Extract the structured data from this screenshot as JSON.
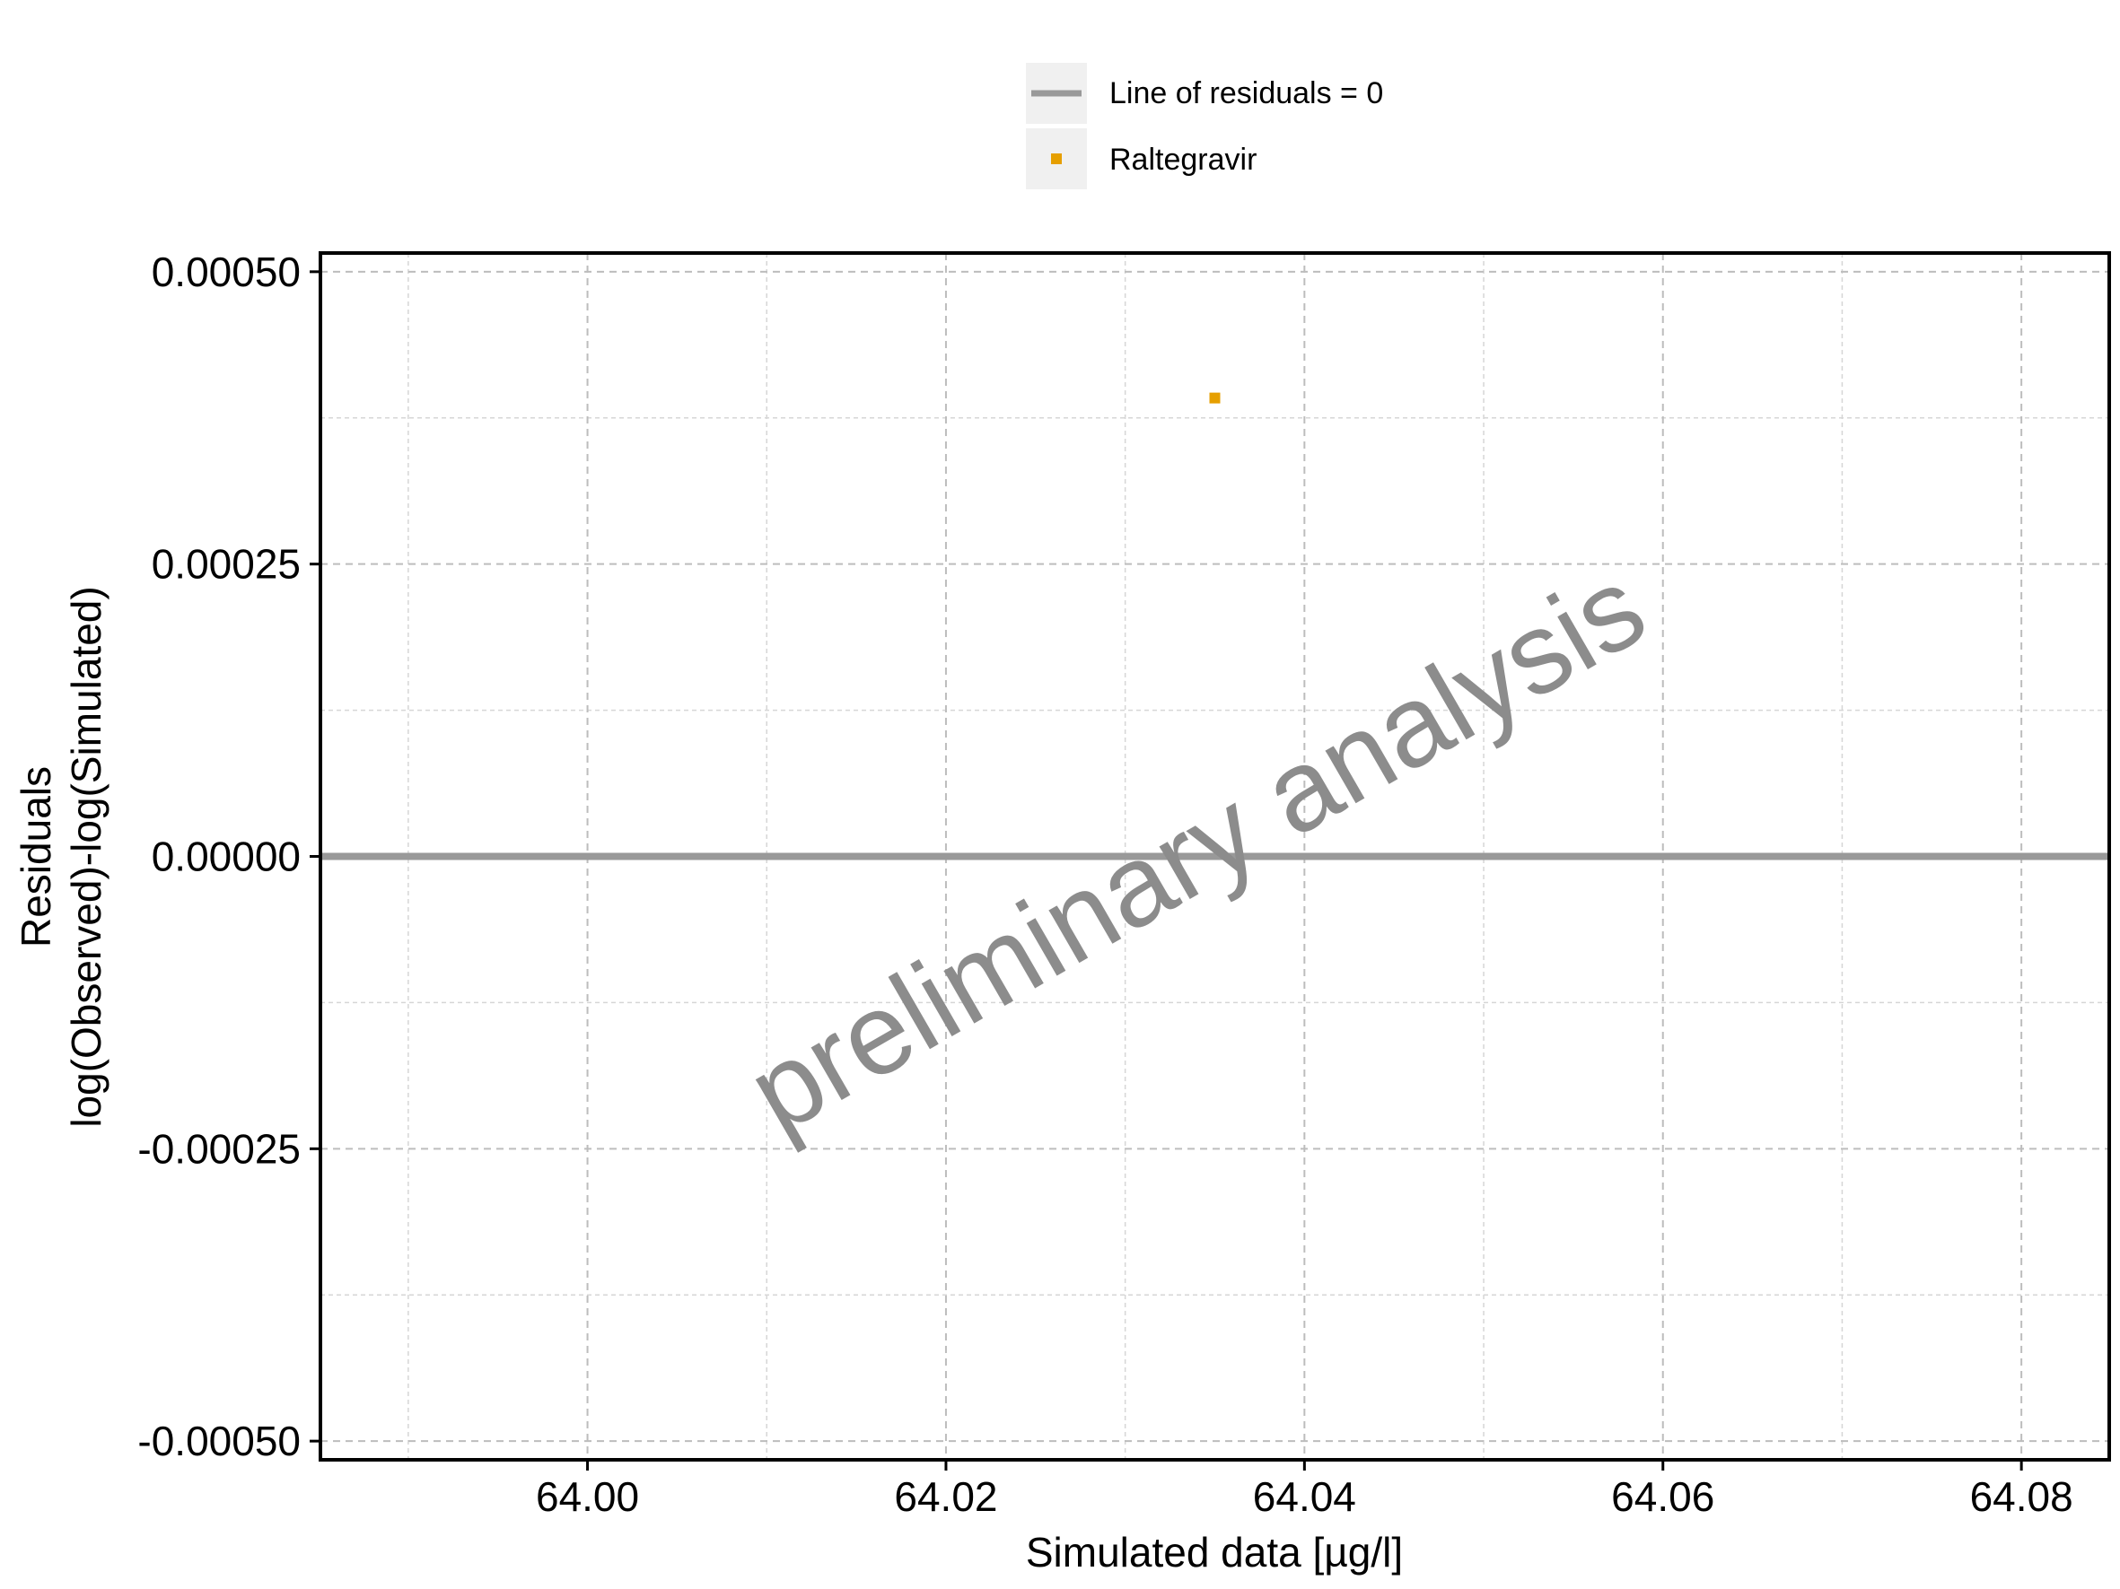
{
  "chart_data": {
    "type": "scatter",
    "xlabel": "Simulated data [µg/l]",
    "ylabel_lines": [
      "Residuals",
      "log(Observed)-log(Simulated)"
    ],
    "xlim": [
      63.9851,
      64.0849
    ],
    "ylim": [
      -0.000516,
      0.000516
    ],
    "x_ticks": [
      64.0,
      64.02,
      64.04,
      64.06,
      64.08
    ],
    "x_tick_labels": [
      "64.00",
      "64.02",
      "64.04",
      "64.06",
      "64.08"
    ],
    "y_ticks": [
      0.0005,
      0.00025,
      0,
      -0.00025,
      -0.0005
    ],
    "y_tick_labels": [
      "0.00050",
      "0.00025",
      "0.00000",
      "-0.00025",
      "-0.00050"
    ],
    "grid": true,
    "legend_position": "top",
    "reference_line": {
      "name": "Line of residuals = 0",
      "y": 0,
      "color": "#999999"
    },
    "series": [
      {
        "name": "Raltegravir",
        "color": "#E69F00",
        "points": [
          {
            "x": 64.035,
            "y": 0.000392
          }
        ]
      }
    ],
    "watermark": "preliminary analysis"
  }
}
